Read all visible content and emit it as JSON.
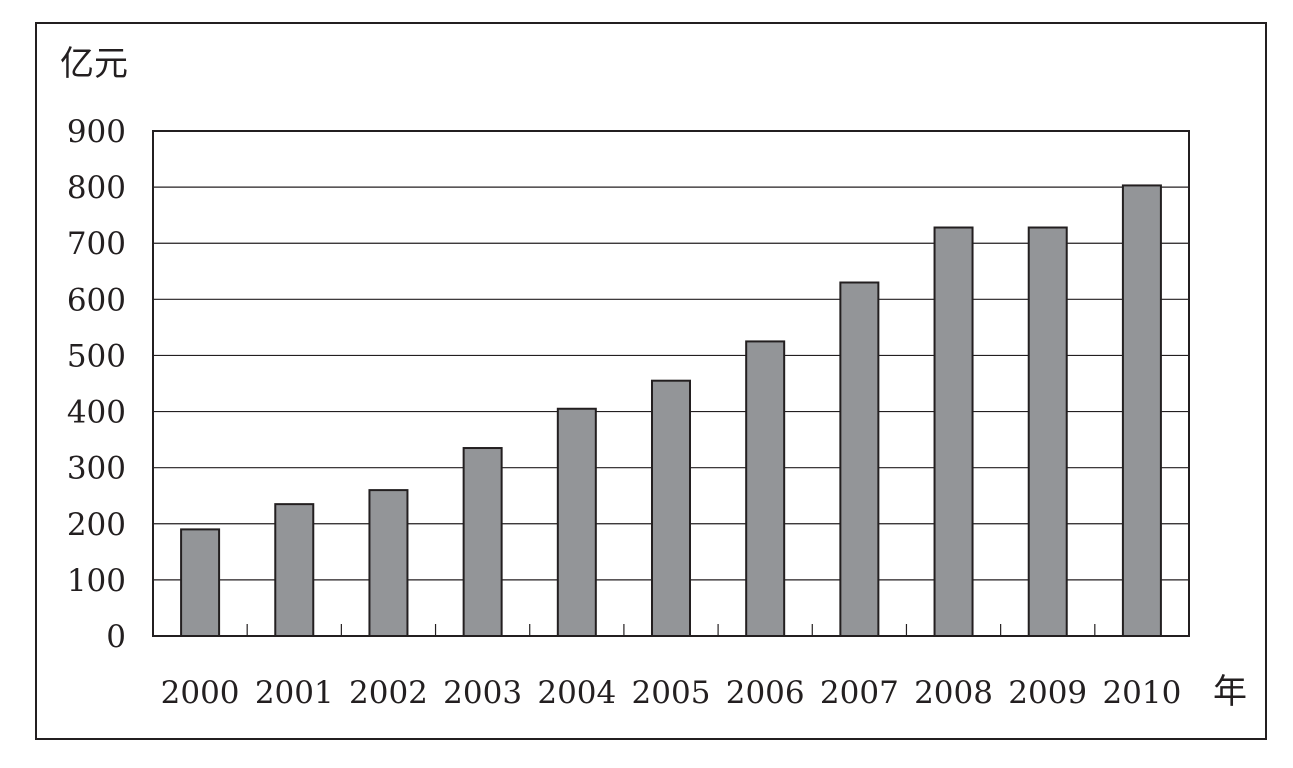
{
  "chart_data": {
    "type": "bar",
    "ylabel": "亿元",
    "xlabel": "年",
    "categories": [
      "2000",
      "2001",
      "2002",
      "2003",
      "2004",
      "2005",
      "2006",
      "2007",
      "2008",
      "2009",
      "2010"
    ],
    "values": [
      190,
      235,
      260,
      335,
      405,
      455,
      525,
      630,
      728,
      728,
      803
    ],
    "ylim": [
      0,
      900
    ],
    "yticks": [
      "0",
      "100",
      "200",
      "300",
      "400",
      "500",
      "600",
      "700",
      "800",
      "900"
    ],
    "grid": true,
    "bar_color": "#939598",
    "edge_color": "#231f20"
  }
}
